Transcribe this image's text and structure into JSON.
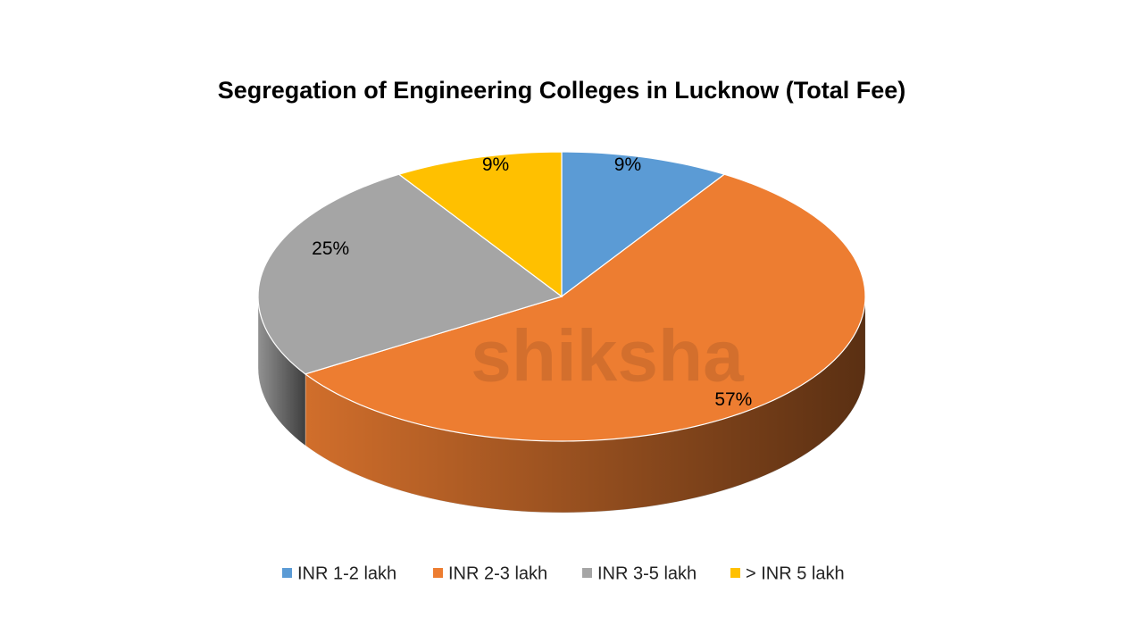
{
  "chart_data": {
    "type": "pie",
    "title": "Segregation of Engineering Colleges in Lucknow (Total Fee)",
    "categories": [
      "INR 1-2 lakh",
      "INR 2-3 lakh",
      "INR 3-5 lakh",
      "> INR 5 lakh"
    ],
    "values": [
      9,
      57,
      25,
      9
    ],
    "value_labels": [
      "9%",
      "57%",
      "25%",
      "9%"
    ],
    "colors": [
      "#5b9bd5",
      "#ed7d31",
      "#a5a5a5",
      "#ffc000"
    ],
    "legend": "bottom",
    "watermark": "shiksha"
  }
}
